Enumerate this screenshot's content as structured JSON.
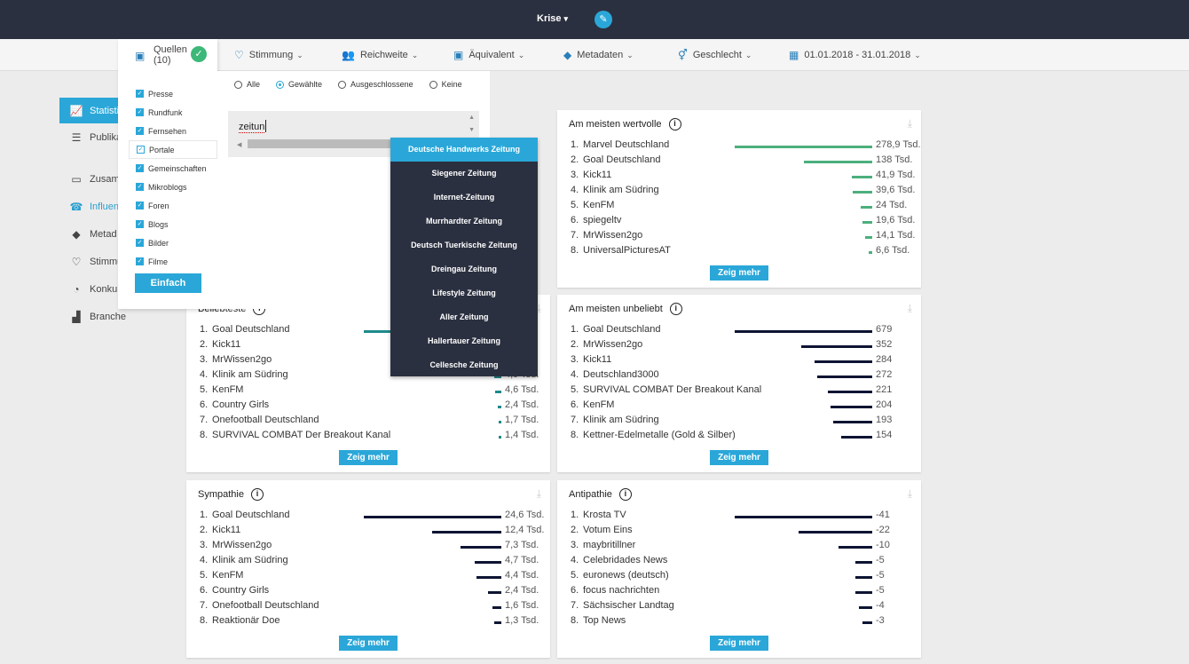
{
  "header": {
    "project": "Krise",
    "edit_icon": "pencil-icon"
  },
  "filters": {
    "quellen": "Quellen",
    "quellen_count": "(10)",
    "stimmung": "Stimmung",
    "reichweite": "Reichweite",
    "aequivalent": "Äquivalent",
    "metadaten": "Metadaten",
    "geschlecht": "Geschlecht",
    "date_range": "01.01.2018 - 31.01.2018"
  },
  "nav": [
    {
      "label": "Statisti",
      "icon": "line-chart-icon"
    },
    {
      "label": "Publika",
      "icon": "list-icon"
    },
    {
      "label": "Zusam",
      "icon": "easel-icon"
    },
    {
      "label": "Influen",
      "icon": "user-phone-icon"
    },
    {
      "label": "Metad",
      "icon": "tags-icon"
    },
    {
      "label": "Stimmu",
      "icon": "heart-icon"
    },
    {
      "label": "Konkur",
      "icon": "donut-icon"
    },
    {
      "label": "Branche",
      "icon": "factory-icon"
    }
  ],
  "sources": {
    "items": [
      "Presse",
      "Rundfunk",
      "Fernsehen",
      "Portale",
      "Gemeinschaften",
      "Mikroblogs",
      "Foren",
      "Blogs",
      "Bilder",
      "Filme"
    ],
    "button": "Einfach"
  },
  "portale": {
    "radios": [
      "Alle",
      "Gewählte",
      "Ausgeschlossene",
      "Keine"
    ],
    "selected_radio": "Gewählte",
    "search_value": "zeitun",
    "suggestions": [
      "Deutsche Handwerks Zeitung",
      "Siegener Zeitung",
      "Internet-Zeitung",
      "Murrhardter Zeitung",
      "Deutsch Tuerkische Zeitung",
      "Dreingau Zeitung",
      "Lifestyle Zeitung",
      "Aller Zeitung",
      "Hallertauer Zeitung",
      "Cellesche Zeitung"
    ]
  },
  "colors": {
    "accent": "#2aa7d8",
    "navy": "#2b3040",
    "green": "#4caf7d",
    "teal": "#1f8a8a",
    "dark_bar": "#0d1433"
  },
  "cards": {
    "wertvolle": {
      "title": "Am meisten wertvolle",
      "more": "Zeig mehr",
      "rows": [
        {
          "rank": "1.",
          "name": "Marvel Deutschland",
          "value": "278,9 Tsd.",
          "n": 278.9
        },
        {
          "rank": "2.",
          "name": "Goal Deutschland",
          "value": "138 Tsd.",
          "n": 138
        },
        {
          "rank": "3.",
          "name": "Kick11",
          "value": "41,9 Tsd.",
          "n": 41.9
        },
        {
          "rank": "4.",
          "name": "Klinik am Südring",
          "value": "39,6 Tsd.",
          "n": 39.6
        },
        {
          "rank": "5.",
          "name": "KenFM",
          "value": "24 Tsd.",
          "n": 24
        },
        {
          "rank": "6.",
          "name": "spiegeltv",
          "value": "19,6 Tsd.",
          "n": 19.6
        },
        {
          "rank": "7.",
          "name": "MrWissen2go",
          "value": "14,1 Tsd.",
          "n": 14.1
        },
        {
          "rank": "8.",
          "name": "UniversalPicturesAT",
          "value": "6,6 Tsd.",
          "n": 6.6
        }
      ]
    },
    "beliebteste": {
      "title": "Beliebteste",
      "more": "Zeig mehr",
      "rows": [
        {
          "rank": "1.",
          "name": "Goal Deutschland",
          "value": "",
          "n": 100
        },
        {
          "rank": "2.",
          "name": "Kick11",
          "value": "",
          "n": 0
        },
        {
          "rank": "3.",
          "name": "MrWissen2go",
          "value": "",
          "n": 0
        },
        {
          "rank": "4.",
          "name": "Klinik am Südring",
          "value": "4,9 Tsd.",
          "n": 4.9
        },
        {
          "rank": "5.",
          "name": "KenFM",
          "value": "4,6 Tsd.",
          "n": 4.6
        },
        {
          "rank": "6.",
          "name": "Country Girls",
          "value": "2,4 Tsd.",
          "n": 2.4
        },
        {
          "rank": "7.",
          "name": "Onefootball Deutschland",
          "value": "1,7 Tsd.",
          "n": 1.7
        },
        {
          "rank": "8.",
          "name": "SURVIVAL COMBAT Der Breakout Kanal",
          "value": "1,4 Tsd.",
          "n": 1.4
        }
      ]
    },
    "unbeliebt": {
      "title": "Am meisten unbeliebt",
      "more": "Zeig mehr",
      "rows": [
        {
          "rank": "1.",
          "name": "Goal Deutschland",
          "value": "679",
          "n": 679
        },
        {
          "rank": "2.",
          "name": "MrWissen2go",
          "value": "352",
          "n": 352
        },
        {
          "rank": "3.",
          "name": "Kick11",
          "value": "284",
          "n": 284
        },
        {
          "rank": "4.",
          "name": "Deutschland3000",
          "value": "272",
          "n": 272
        },
        {
          "rank": "5.",
          "name": "SURVIVAL COMBAT Der Breakout Kanal",
          "value": "221",
          "n": 221
        },
        {
          "rank": "6.",
          "name": "KenFM",
          "value": "204",
          "n": 204
        },
        {
          "rank": "7.",
          "name": "Klinik am Südring",
          "value": "193",
          "n": 193
        },
        {
          "rank": "8.",
          "name": "Kettner-Edelmetalle (Gold & Silber)",
          "value": "154",
          "n": 154
        }
      ]
    },
    "sympathie": {
      "title": "Sympathie",
      "more": "Zeig mehr",
      "rows": [
        {
          "rank": "1.",
          "name": "Goal Deutschland",
          "value": "24,6 Tsd.",
          "n": 24.6
        },
        {
          "rank": "2.",
          "name": "Kick11",
          "value": "12,4 Tsd.",
          "n": 12.4
        },
        {
          "rank": "3.",
          "name": "MrWissen2go",
          "value": "7,3 Tsd.",
          "n": 7.3
        },
        {
          "rank": "4.",
          "name": "Klinik am Südring",
          "value": "4,7 Tsd.",
          "n": 4.7
        },
        {
          "rank": "5.",
          "name": "KenFM",
          "value": "4,4 Tsd.",
          "n": 4.4
        },
        {
          "rank": "6.",
          "name": "Country Girls",
          "value": "2,4 Tsd.",
          "n": 2.4
        },
        {
          "rank": "7.",
          "name": "Onefootball Deutschland",
          "value": "1,6 Tsd.",
          "n": 1.6
        },
        {
          "rank": "8.",
          "name": "Reaktionär Doe",
          "value": "1,3 Tsd.",
          "n": 1.3
        }
      ]
    },
    "antipathie": {
      "title": "Antipathie",
      "more": "Zeig mehr",
      "rows": [
        {
          "rank": "1.",
          "name": "Krosta TV",
          "value": "-41",
          "n": 41
        },
        {
          "rank": "2.",
          "name": "Votum Eins",
          "value": "-22",
          "n": 22
        },
        {
          "rank": "3.",
          "name": "maybritillner",
          "value": "-10",
          "n": 10
        },
        {
          "rank": "4.",
          "name": "Celebridades News",
          "value": "-5",
          "n": 5
        },
        {
          "rank": "5.",
          "name": "euronews (deutsch)",
          "value": "-5",
          "n": 5
        },
        {
          "rank": "6.",
          "name": "focus nachrichten",
          "value": "-5",
          "n": 5
        },
        {
          "rank": "7.",
          "name": "Sächsischer Landtag",
          "value": "-4",
          "n": 4
        },
        {
          "rank": "8.",
          "name": "Top News",
          "value": "-3",
          "n": 3
        }
      ]
    }
  }
}
